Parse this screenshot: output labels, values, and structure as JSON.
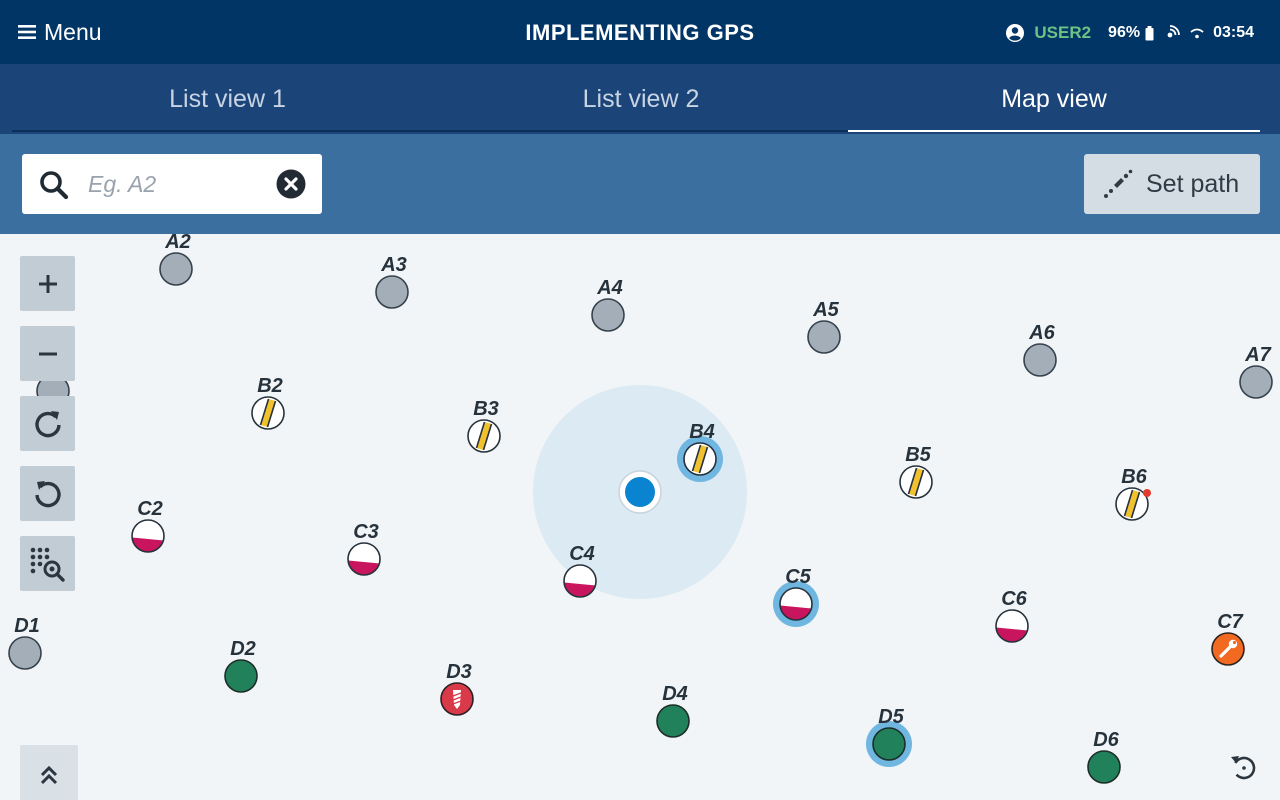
{
  "header": {
    "menu_label": "Menu",
    "title": "IMPLEMENTING GPS",
    "user": "USER2",
    "battery": "96%",
    "time": "03:54"
  },
  "tabs": [
    {
      "label": "List view 1",
      "active": false
    },
    {
      "label": "List view 2",
      "active": false
    },
    {
      "label": "Map view",
      "active": true
    }
  ],
  "search": {
    "placeholder": "Eg. A2",
    "value": ""
  },
  "set_path_label": "Set path",
  "colors": {
    "header_bg": "#003566",
    "tabs_bg": "#1b4478",
    "search_bg": "#3b6fa0",
    "user_green": "#6cc384",
    "marker_grey": "#a3aeb8",
    "marker_green": "#21815a",
    "marker_crimson": "#c8155e",
    "marker_yellow": "#f2c12e",
    "marker_red": "#d93a4a",
    "marker_orange": "#f26a21",
    "location_blue": "#0a84d0",
    "highlight_blue": "#6fb6e0"
  },
  "map_controls": [
    {
      "name": "zoom-in-button",
      "icon": "plus-icon"
    },
    {
      "name": "zoom-out-button",
      "icon": "minus-icon"
    },
    {
      "name": "redo-button",
      "icon": "rotate-cw-icon"
    },
    {
      "name": "undo-button",
      "icon": "rotate-ccw-icon"
    },
    {
      "name": "grid-search-button",
      "icon": "grid-search-icon"
    }
  ],
  "markers": [
    {
      "label": "A2",
      "kind": "grey",
      "highlighted": false
    },
    {
      "label": "A3",
      "kind": "grey",
      "highlighted": false
    },
    {
      "label": "A4",
      "kind": "grey",
      "highlighted": false
    },
    {
      "label": "A5",
      "kind": "grey",
      "highlighted": false
    },
    {
      "label": "A6",
      "kind": "grey",
      "highlighted": false
    },
    {
      "label": "A7",
      "kind": "grey",
      "highlighted": false
    },
    {
      "label": "B2",
      "kind": "striped",
      "highlighted": false
    },
    {
      "label": "B3",
      "kind": "striped",
      "highlighted": false
    },
    {
      "label": "B4",
      "kind": "striped",
      "highlighted": true
    },
    {
      "label": "B5",
      "kind": "striped",
      "highlighted": false
    },
    {
      "label": "B6",
      "kind": "striped",
      "highlighted": false,
      "alert_dot": true
    },
    {
      "label": "C2",
      "kind": "half",
      "highlighted": false
    },
    {
      "label": "C3",
      "kind": "half",
      "highlighted": false
    },
    {
      "label": "C4",
      "kind": "half",
      "highlighted": false
    },
    {
      "label": "C5",
      "kind": "half",
      "highlighted": true
    },
    {
      "label": "C6",
      "kind": "half",
      "highlighted": false
    },
    {
      "label": "C7",
      "kind": "wrench",
      "highlighted": false
    },
    {
      "label": "D1",
      "kind": "grey",
      "highlighted": false
    },
    {
      "label": "D2",
      "kind": "green",
      "highlighted": false
    },
    {
      "label": "D3",
      "kind": "drill",
      "highlighted": false
    },
    {
      "label": "D4",
      "kind": "green",
      "highlighted": false
    },
    {
      "label": "D5",
      "kind": "green",
      "highlighted": true
    },
    {
      "label": "D6",
      "kind": "green",
      "highlighted": false
    }
  ]
}
